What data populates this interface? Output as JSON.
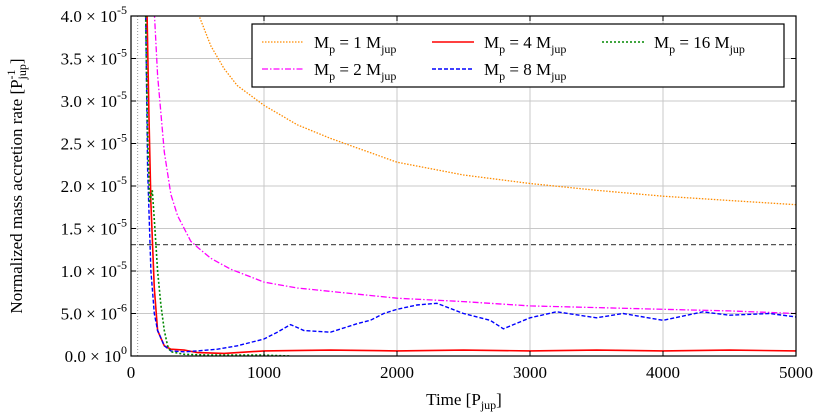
{
  "chart_data": {
    "type": "line",
    "title": "",
    "xlabel": {
      "main": "Time [P",
      "sub": "jup",
      "end": "]"
    },
    "ylabel": {
      "main": "Normalized mass accretion rate [P",
      "sup": "-1",
      "sub": "jup",
      "end": "]"
    },
    "xlim": [
      0,
      5000
    ],
    "ylim": [
      0,
      4e-05
    ],
    "grid": true,
    "legend_placement": "top-right",
    "x_ticks": [
      {
        "value": 0,
        "label": "0"
      },
      {
        "value": 1000,
        "label": "1000"
      },
      {
        "value": 2000,
        "label": "2000"
      },
      {
        "value": 3000,
        "label": "3000"
      },
      {
        "value": 4000,
        "label": "4000"
      },
      {
        "value": 5000,
        "label": "5000"
      }
    ],
    "y_ticks": [
      {
        "value": 0,
        "mantissa": "0.0 × 10",
        "exp": "0"
      },
      {
        "value": 5e-06,
        "mantissa": "5.0 × 10",
        "exp": "-6"
      },
      {
        "value": 1e-05,
        "mantissa": "1.0 × 10",
        "exp": "-5"
      },
      {
        "value": 1.5e-05,
        "mantissa": "1.5 × 10",
        "exp": "-5"
      },
      {
        "value": 2e-05,
        "mantissa": "2.0 × 10",
        "exp": "-5"
      },
      {
        "value": 2.5e-05,
        "mantissa": "2.5 × 10",
        "exp": "-5"
      },
      {
        "value": 3e-05,
        "mantissa": "3.0 × 10",
        "exp": "-5"
      },
      {
        "value": 3.5e-05,
        "mantissa": "3.5 × 10",
        "exp": "-5"
      },
      {
        "value": 4e-05,
        "mantissa": "4.0 × 10",
        "exp": "-5"
      }
    ],
    "reference_lines": [
      {
        "orientation": "horizontal",
        "value": 1.31e-05,
        "style": "dashed",
        "color": "#555555"
      },
      {
        "orientation": "vertical",
        "value": 50,
        "style": "dotted",
        "color": "#999999"
      }
    ],
    "series": [
      {
        "name": "M_p = 1 M_jup",
        "label": {
          "a": "M",
          "b": "p",
          "c": " = 1 M",
          "d": "jup"
        },
        "color": "#ff8c00",
        "dash": "1.5,1.5",
        "width": 1.3,
        "x": [
          500,
          600,
          700,
          800,
          1000,
          1250,
          1500,
          2000,
          2500,
          3000,
          3500,
          4000,
          4500,
          5000
        ],
        "y": [
          4.05e-05,
          3.65e-05,
          3.38e-05,
          3.18e-05,
          2.95e-05,
          2.72e-05,
          2.56e-05,
          2.28e-05,
          2.13e-05,
          2.03e-05,
          1.95e-05,
          1.88e-05,
          1.83e-05,
          1.78e-05
        ]
      },
      {
        "name": "M_p = 2 M_jup",
        "label": {
          "a": "M",
          "b": "p",
          "c": " = 2 M",
          "d": "jup"
        },
        "color": "#ff00ff",
        "dash": "6,2,1.5,2",
        "width": 1.3,
        "x": [
          175,
          200,
          250,
          300,
          350,
          400,
          450,
          500,
          600,
          750,
          900,
          1000,
          1250,
          1500,
          1750,
          2000,
          2500,
          3000,
          3500,
          4000,
          4500,
          5000
        ],
        "y": [
          4.05e-05,
          3.3e-05,
          2.4e-05,
          1.9e-05,
          1.65e-05,
          1.5e-05,
          1.35e-05,
          1.28e-05,
          1.15e-05,
          1.02e-05,
          9.3e-06,
          8.7e-06,
          8e-06,
          7.6e-06,
          7.2e-06,
          6.8e-06,
          6.4e-06,
          5.9e-06,
          5.7e-06,
          5.5e-06,
          5.3e-06,
          5e-06
        ]
      },
      {
        "name": "M_p = 4 M_jup",
        "label": {
          "a": "M",
          "b": "p",
          "c": " = 4 M",
          "d": "jup"
        },
        "color": "#ff0000",
        "dash": "",
        "width": 1.6,
        "x": [
          120,
          135,
          150,
          175,
          200,
          250,
          300,
          400,
          500,
          700,
          1000,
          1500,
          2000,
          2500,
          3000,
          3500,
          4000,
          4500,
          5000
        ],
        "y": [
          4.05e-05,
          2.8e-05,
          1.8e-05,
          8e-06,
          3e-06,
          1.2e-06,
          8e-07,
          7e-07,
          4e-07,
          3e-07,
          6e-07,
          7e-07,
          6e-07,
          7e-07,
          6e-07,
          7e-07,
          6e-07,
          7e-07,
          6e-07
        ]
      },
      {
        "name": "M_p = 8 M_jup",
        "label": {
          "a": "M",
          "b": "p",
          "c": " = 8 M",
          "d": "jup"
        },
        "color": "#0000ff",
        "dash": "4,2",
        "width": 1.4,
        "x": [
          110,
          125,
          150,
          175,
          200,
          250,
          300,
          400,
          500,
          650,
          800,
          1000,
          1100,
          1200,
          1300,
          1500,
          1700,
          1800,
          1900,
          2000,
          2150,
          2300,
          2500,
          2700,
          2800,
          3000,
          3200,
          3500,
          3700,
          4000,
          4300,
          4500,
          4800,
          5000
        ],
        "y": [
          4.05e-05,
          2.2e-05,
          1e-05,
          5e-06,
          3e-06,
          1.2e-06,
          6e-07,
          5e-07,
          6e-07,
          8e-07,
          1.2e-06,
          2e-06,
          2.8e-06,
          3.7e-06,
          3e-06,
          2.8e-06,
          3.8e-06,
          4.2e-06,
          5e-06,
          5.5e-06,
          6e-06,
          6.2e-06,
          5e-06,
          4.2e-06,
          3.2e-06,
          4.5e-06,
          5.2e-06,
          4.5e-06,
          5e-06,
          4.2e-06,
          5.2e-06,
          4.8e-06,
          5e-06,
          4.6e-06
        ]
      },
      {
        "name": "M_p = 16 M_jup",
        "label": {
          "a": "M",
          "b": "p",
          "c": " = 16 M",
          "d": "jup"
        },
        "color": "#008800",
        "dash": "2,2",
        "width": 1.6,
        "x": [
          110,
          125,
          140,
          160,
          180,
          200,
          225,
          250,
          275,
          300,
          400,
          600,
          800,
          1000,
          1100,
          1200
        ],
        "y": [
          4.05e-05,
          2.6e-05,
          1.8e-05,
          1.95e-05,
          1.5e-05,
          1e-05,
          6e-06,
          3e-06,
          1.2e-06,
          5e-07,
          2e-07,
          1e-07,
          1e-07,
          1e-07,
          5e-08,
          0.0
        ]
      }
    ]
  }
}
